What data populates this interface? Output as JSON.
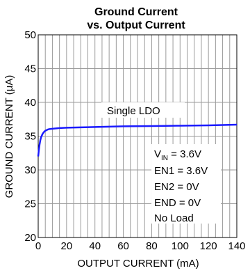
{
  "chart_data": {
    "type": "line",
    "title_line1": "Ground Current",
    "title_line2": "vs. Output Current",
    "xlabel": "OUTPUT CURRENT (mA)",
    "ylabel": "GROUND CURRENT (μA)",
    "xlim": [
      0,
      140
    ],
    "ylim": [
      20,
      50
    ],
    "x_ticks": [
      0,
      20,
      40,
      60,
      80,
      100,
      120,
      140
    ],
    "y_ticks": [
      20,
      25,
      30,
      35,
      40,
      45,
      50
    ],
    "grid": true,
    "series": [
      {
        "color": "#1a1aff",
        "x": [
          0,
          0.5,
          1,
          1.5,
          2,
          3,
          4,
          5,
          6,
          7,
          8,
          10,
          15,
          20,
          30,
          40,
          60,
          80,
          100,
          120,
          140
        ],
        "y": [
          32.0,
          33.0,
          33.8,
          34.4,
          34.8,
          35.3,
          35.6,
          35.8,
          35.9,
          36.0,
          36.05,
          36.1,
          36.2,
          36.25,
          36.3,
          36.35,
          36.45,
          36.5,
          36.55,
          36.6,
          36.7
        ]
      }
    ],
    "annotations": {
      "single_ldo": "Single LDO",
      "vin_main": "V",
      "vin_sub": "IN",
      "vin_rest": " = 3.6V",
      "en1": "EN1 = 3.6V",
      "en2": "EN2 = 0V",
      "end": "END = 0V",
      "no_load": "No Load"
    }
  }
}
